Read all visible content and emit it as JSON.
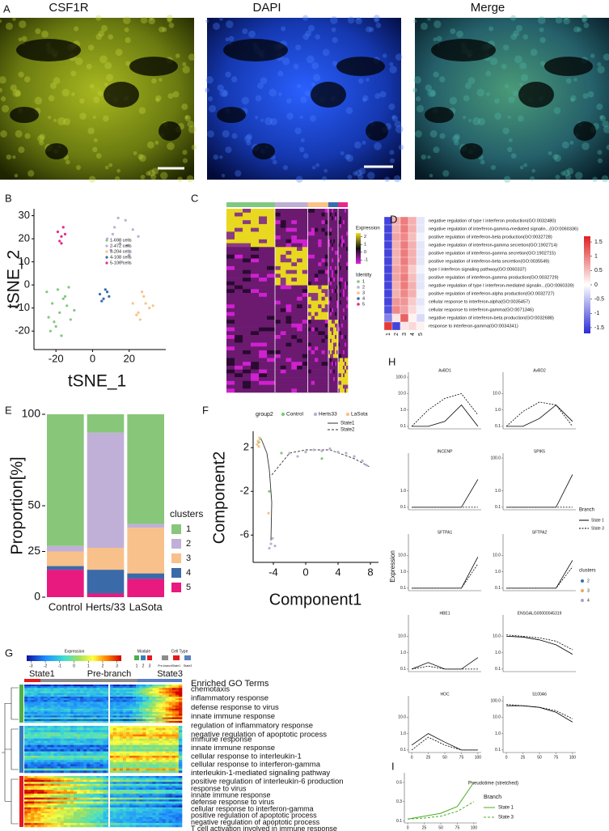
{
  "chart_data": [
    {
      "type": "image",
      "panel": "A",
      "labels": [
        "CSF1R",
        "DAPI",
        "Merge"
      ]
    },
    {
      "type": "scatter",
      "panel": "B",
      "x_label": "tSNE_1",
      "y_label": "tSNE_2",
      "xlim": [
        -32,
        40
      ],
      "ylim": [
        -28,
        33
      ],
      "xticks": [
        -20,
        0,
        20
      ],
      "yticks": [
        -20,
        -10,
        0,
        10,
        20,
        30
      ],
      "series": [
        {
          "name": "1-698 cells",
          "color": "#7fc97f",
          "x": [
            -25,
            -22,
            -18,
            -15,
            -12,
            -20,
            -17,
            -24,
            -14,
            -19,
            -21,
            -10,
            -16,
            -23,
            -13
          ],
          "values": [
            -3,
            -8,
            -12,
            -5,
            -15,
            -18,
            -22,
            -14,
            -9,
            -2,
            -16,
            -11,
            -6,
            -20,
            -1
          ]
        },
        {
          "name": "2-472 cells",
          "color": "#beaed4",
          "x": [
            8,
            12,
            15,
            18,
            22,
            10,
            14,
            20,
            25,
            16,
            11,
            19
          ],
          "values": [
            20,
            25,
            18,
            28,
            24,
            15,
            29,
            13,
            21,
            10,
            22,
            17
          ]
        },
        {
          "name": "3-204 cells",
          "color": "#fdc086",
          "x": [
            22,
            25,
            28,
            31,
            26,
            29,
            24,
            33,
            27
          ],
          "values": [
            -8,
            -12,
            -5,
            -10,
            -15,
            -8,
            -13,
            -9,
            -3
          ]
        },
        {
          "name": "4-108 cells",
          "color": "#386cb0",
          "x": [
            4,
            6,
            8,
            5,
            7,
            9
          ],
          "values": [
            -4,
            -6,
            -3,
            -7,
            -2,
            -5
          ]
        },
        {
          "name": "5-106 cells",
          "color": "#e7298a",
          "x": [
            -19,
            -17,
            -16,
            -18,
            -15,
            -17
          ],
          "values": [
            23,
            21,
            25,
            19,
            22,
            18
          ]
        }
      ]
    },
    {
      "type": "gene-heatmap",
      "panel": "C",
      "colorbar_title": "Expression",
      "colorbar_lim": [
        -1.5,
        2.5
      ],
      "colorbar_ticks": [
        2,
        1,
        0,
        -1
      ],
      "identity_title": "Identity",
      "identities": [
        "1",
        "2",
        "3",
        "4",
        "5"
      ],
      "identity_colors": [
        "#7fc97f",
        "#beaed4",
        "#fdc086",
        "#386cb0",
        "#e7298a"
      ]
    },
    {
      "type": "heatmap",
      "panel": "D",
      "rows": [
        "negative regulation of type I interferon production(GO:0032480)",
        "negative regulation of interferon-gamma-mediated signalin...(GO:0060336)",
        "positive regulation of interferon-beta production(GO:0032728)",
        "negative regulation of interferon-gamma secretion(GO:1902714)",
        "positive regulation of interferon-gamma secretion(GO:1902715)",
        "positive regulation of interferon-beta secretion(GO:0035549)",
        "type I interferon signaling pathway(GO:0060337)",
        "positive regulation of interferon-gamma production(GO:0032729)",
        "negative regulation of type I interferon-mediated signalin...(GO:0060339)",
        "positive regulation of interferon-alpha production(GO:0032727)",
        "cellular response to interferon-alpha(GO:0035457)",
        "cellular response to interferon-gamma(GO:0071346)",
        "negative regulation of interferon-beta production(GO:0032688)",
        "response to interferon-gamma(GO:0034341)"
      ],
      "columns": [
        "1",
        "2",
        "3",
        "4",
        "5"
      ],
      "values": [
        [
          -1.5,
          0.6,
          1.0,
          0.6,
          -0.2
        ],
        [
          -1.5,
          0.6,
          1.0,
          0.6,
          -0.2
        ],
        [
          -1.5,
          0.7,
          0.9,
          0.5,
          -0.1
        ],
        [
          -1.5,
          0.6,
          1.0,
          0.6,
          -0.2
        ],
        [
          -1.5,
          0.6,
          1.0,
          0.6,
          -0.2
        ],
        [
          -1.5,
          0.6,
          1.0,
          0.6,
          -0.2
        ],
        [
          -1.5,
          0.7,
          0.9,
          0.4,
          -0.1
        ],
        [
          -1.5,
          0.7,
          1.0,
          0.5,
          -0.2
        ],
        [
          -1.5,
          0.6,
          1.0,
          0.6,
          -0.2
        ],
        [
          -1.5,
          0.6,
          0.9,
          0.6,
          -0.1
        ],
        [
          -1.5,
          0.8,
          0.8,
          0.4,
          -0.2
        ],
        [
          -1.4,
          0.9,
          0.7,
          0.3,
          -0.1
        ],
        [
          -1.0,
          0.2,
          1.2,
          0.1,
          -0.3
        ],
        [
          1.5,
          -1.5,
          0.2,
          0.3,
          0.1
        ]
      ],
      "zlim": [
        -1.7,
        1.7
      ],
      "zticks": [
        1.5,
        1,
        0.5,
        0,
        -0.5,
        -1,
        -1.5
      ],
      "low_color": "#2b2bd6",
      "high_color": "#e02020"
    },
    {
      "type": "stacked-bar",
      "panel": "E",
      "y_label": "Proportion[%]",
      "categories": [
        "Control",
        "Herts/33",
        "LaSota"
      ],
      "ylim": [
        0,
        100
      ],
      "yticks": [
        0,
        25,
        50,
        100
      ],
      "legend_title": "clusters",
      "series": [
        {
          "name": "1",
          "color": "#88c67a",
          "values": [
            72,
            10,
            60
          ]
        },
        {
          "name": "2",
          "color": "#c0b0d8",
          "values": [
            3,
            63,
            2
          ]
        },
        {
          "name": "3",
          "color": "#f8c08a",
          "values": [
            8,
            12,
            25
          ]
        },
        {
          "name": "4",
          "color": "#3b6aa8",
          "values": [
            2,
            13,
            3
          ]
        },
        {
          "name": "5",
          "color": "#e8197f",
          "values": [
            15,
            2,
            10
          ]
        }
      ]
    },
    {
      "type": "trajectory",
      "panel": "F",
      "x_label": "Component1",
      "y_label": "Component2",
      "xlim": [
        -6.5,
        9
      ],
      "ylim": [
        -8.5,
        3.5
      ],
      "xticks": [
        -4,
        0,
        4,
        8
      ],
      "yticks": [
        -6,
        -2,
        2
      ],
      "legend_title": "group2",
      "groups": [
        {
          "name": "Control",
          "color": "#7fc97f",
          "x": [
            -5.8,
            -5.6,
            -4.5,
            2,
            -3
          ],
          "values": [
            2.5,
            2.8,
            -2,
            1,
            1.5
          ]
        },
        {
          "name": "Herts33",
          "color": "#beaed4",
          "x": [
            -4.3,
            -4.5,
            -4.1,
            -3.8,
            0,
            1,
            2,
            3,
            4,
            5,
            6,
            7,
            7.5,
            -1,
            -2
          ],
          "values": [
            -6.8,
            -7.2,
            -6.3,
            -7,
            1.6,
            1.8,
            1.7,
            1.9,
            1.6,
            1.5,
            1.2,
            0.8,
            0.4,
            1.2,
            1.5
          ]
        },
        {
          "name": "LaSota",
          "color": "#fdc086",
          "x": [
            -5.9,
            -6,
            -5.7,
            -5.8,
            -4.6
          ],
          "values": [
            2.6,
            2.3,
            2.9,
            2.1,
            -4
          ]
        }
      ],
      "branches": [
        {
          "name": "State1",
          "dash": false,
          "x": [
            -4.3,
            -4.2,
            -4.5,
            -4.8,
            -5.5
          ],
          "values": [
            -6.5,
            -3,
            0,
            1.5,
            2.8
          ]
        },
        {
          "name": "State2",
          "dash": true,
          "x": [
            -4.2,
            -2,
            0,
            3,
            6,
            8
          ],
          "values": [
            -0.5,
            1.5,
            1.8,
            1.8,
            1,
            0.2
          ]
        }
      ]
    },
    {
      "type": "module-heatmap",
      "panel": "G",
      "colorbar_title": "Expression",
      "colorbar_lim": [
        -3.3,
        3.3
      ],
      "colorbar_ticks": [
        -3,
        -2,
        -1,
        0,
        1,
        2,
        3
      ],
      "module_title": "Module",
      "modules": [
        "1",
        "2",
        "3"
      ],
      "module_colors": [
        "#4daf4a",
        "#377eb8",
        "#e41a1c"
      ],
      "cell_type_title": "Cell Type",
      "cell_types": [
        "Pre-branch",
        "State1",
        "State3"
      ],
      "cell_type_colors": [
        "#8c8c8c",
        "#e41a1c",
        "#5b7fbf"
      ],
      "states": [
        "State1",
        "Pre-branch",
        "State3"
      ],
      "terms_title": "Enriched GO Terms",
      "term_groups": [
        [
          "chemotaxis",
          "inflammatory response",
          "defense response to virus",
          "innate immune response",
          "regulation of inflammatory response",
          "negative regulation of apoptotic process"
        ],
        [
          "immune response",
          "innate immune response",
          "cellular response to interleukin-1",
          "cellular response to interferon-gamma",
          "interleukin-1-mediated signaling pathway",
          "positive regulation of interleukin-6 production"
        ],
        [
          "response to virus",
          "innate immune response",
          "defense response to virus",
          "cellular response to interferon-gamma",
          "positive regulation of apoptotic process",
          "negative regulation of apoptotic process",
          "T cell activation involved in immune response"
        ]
      ]
    },
    {
      "type": "facets",
      "panel": "H",
      "y_label": "Expression",
      "x_label": "Pseudotime (stretched)",
      "x": [
        0,
        25,
        50,
        75,
        100
      ],
      "xlim": [
        -5,
        105
      ],
      "ylim": [
        0.07,
        200
      ],
      "log_y": true,
      "legend_title": "Branch",
      "lines": [
        {
          "name": "State 1",
          "dash": false
        },
        {
          "name": "State 3",
          "dash": true
        }
      ],
      "clusters_title": "clusters",
      "clusters": [
        {
          "name": "2",
          "color": "#3b6fb6"
        },
        {
          "name": "3",
          "color": "#f0a860"
        },
        {
          "name": "4",
          "color": "#a9a0d0"
        }
      ],
      "panels": [
        {
          "title": "AvBD1",
          "yticks": [
            {
              "value": 0.1,
              "label": "0.1"
            },
            {
              "value": 1,
              "label": "1.0"
            },
            {
              "value": 10,
              "label": "10.0"
            },
            {
              "value": 100,
              "label": "100.0"
            }
          ],
          "values": [
            [
              0.1,
              0.1,
              0.2,
              2,
              0.1
            ],
            [
              0.1,
              1,
              5,
              10,
              0.5
            ]
          ]
        },
        {
          "title": "AvBD2",
          "yticks": [
            {
              "value": 0.1,
              "label": "0.1"
            },
            {
              "value": 1,
              "label": "1.0"
            },
            {
              "value": 10,
              "label": "10.0"
            }
          ],
          "values": [
            [
              0.1,
              0.1,
              0.3,
              2,
              0.2
            ],
            [
              0.1,
              0.8,
              3,
              2,
              0.1
            ]
          ]
        },
        {
          "title": "INCENP",
          "yticks": [
            {
              "value": 0.1,
              "label": "0.1"
            },
            {
              "value": 1,
              "label": "1.0"
            }
          ],
          "values": [
            [
              0.1,
              0.1,
              0.1,
              0.1,
              5
            ],
            [
              0.1,
              0.1,
              0.1,
              0.1,
              0.1
            ]
          ]
        },
        {
          "title": "SPIK5",
          "yticks": [
            {
              "value": 0.1,
              "label": "0.1"
            },
            {
              "value": 1,
              "label": "1.0"
            },
            {
              "value": 100,
              "label": "100.0"
            }
          ],
          "values": [
            [
              0.1,
              0.1,
              0.1,
              0.1,
              10
            ],
            [
              0.1,
              0.1,
              0.1,
              0.1,
              0.1
            ]
          ]
        },
        {
          "title": "SFTPA1",
          "yticks": [
            {
              "value": 0.1,
              "label": "0.1"
            },
            {
              "value": 1,
              "label": "1.0"
            },
            {
              "value": 10,
              "label": "10.0"
            }
          ],
          "values": [
            [
              0.1,
              0.1,
              0.1,
              0.1,
              8
            ],
            [
              0.1,
              0.1,
              0.1,
              0.1,
              3
            ]
          ]
        },
        {
          "title": "SFTPA2",
          "yticks": [
            {
              "value": 0.1,
              "label": "0.1"
            },
            {
              "value": 1,
              "label": "1.0"
            },
            {
              "value": 10,
              "label": "10.0"
            }
          ],
          "values": [
            [
              0.1,
              0.1,
              0.1,
              0.1,
              5
            ],
            [
              0.1,
              0.1,
              0.1,
              0.1,
              2
            ]
          ]
        },
        {
          "title": "HBE1",
          "yticks": [
            {
              "value": 0.1,
              "label": "0.1"
            },
            {
              "value": 1,
              "label": "1.0"
            },
            {
              "value": 10,
              "label": "10.0"
            }
          ],
          "values": [
            [
              0.1,
              0.25,
              0.1,
              0.1,
              0.5
            ],
            [
              0.1,
              0.15,
              0.1,
              0.1,
              0.1
            ]
          ]
        },
        {
          "title": "ENSGALG00000045319",
          "yticks": [
            {
              "value": 0.1,
              "label": "0.1"
            },
            {
              "value": 1,
              "label": "1.0"
            },
            {
              "value": 10,
              "label": "10.0"
            }
          ],
          "values": [
            [
              10,
              9,
              6,
              3,
              0.8
            ],
            [
              12,
              10,
              8,
              5,
              1.5
            ]
          ]
        },
        {
          "title": "HOC",
          "yticks": [
            {
              "value": 0.1,
              "label": "0.1"
            },
            {
              "value": 1,
              "label": "1.0"
            },
            {
              "value": 10,
              "label": "10.0"
            }
          ],
          "xticks": [
            0,
            25,
            50,
            75,
            100
          ],
          "values": [
            [
              0.2,
              1,
              0.3,
              0.1,
              0.1
            ],
            [
              0.1,
              0.6,
              0.2,
              0.1,
              0.1
            ]
          ]
        },
        {
          "title": "S100A6",
          "yticks": [
            {
              "value": 0.1,
              "label": "0.1"
            },
            {
              "value": 1,
              "label": "1.0"
            },
            {
              "value": 10,
              "label": "10.0"
            },
            {
              "value": 100,
              "label": "100.0"
            }
          ],
          "xticks": [
            0,
            25,
            50,
            75,
            100
          ],
          "values": [
            [
              50,
              50,
              40,
              20,
              5
            ],
            [
              60,
              50,
              40,
              25,
              8
            ]
          ]
        }
      ]
    },
    {
      "type": "line",
      "panel": "I",
      "legend_title": "Branch",
      "x": [
        0,
        25,
        50,
        75,
        100
      ],
      "xlim": [
        -5,
        105
      ],
      "ylim": [
        0.08,
        0.6
      ],
      "xticks": [
        0,
        25,
        50,
        75,
        100
      ],
      "yticks": [
        0.1,
        0.3,
        0.5
      ],
      "series": [
        {
          "name": "State 1",
          "color": "#4dac26",
          "dash": false,
          "values": [
            0.12,
            0.15,
            0.18,
            0.25,
            0.5
          ]
        },
        {
          "name": "State 3",
          "color": "#4dac26",
          "dash": true,
          "values": [
            0.12,
            0.13,
            0.15,
            0.2,
            0.3
          ]
        }
      ]
    }
  ]
}
